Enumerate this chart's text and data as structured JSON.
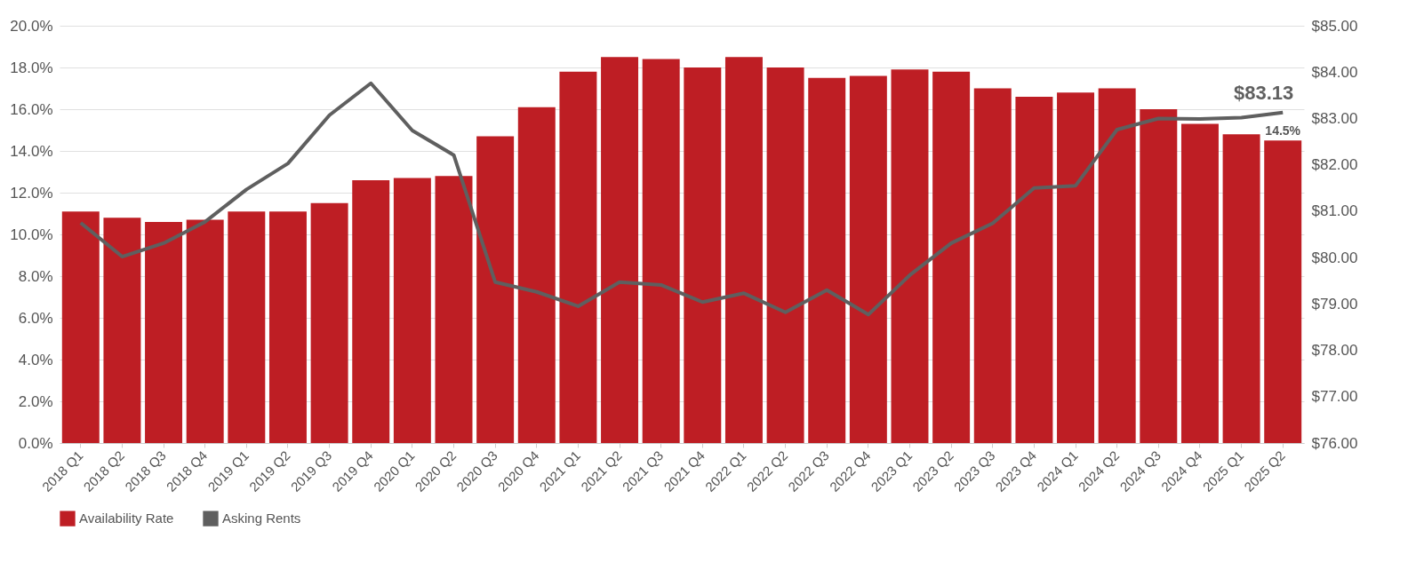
{
  "chart_data": {
    "type": "bar",
    "categories": [
      "2018 Q1",
      "2018 Q2",
      "2018 Q3",
      "2018 Q4",
      "2019 Q1",
      "2019 Q2",
      "2019 Q3",
      "2019 Q4",
      "2020 Q1",
      "2020 Q2",
      "2020 Q3",
      "2020 Q4",
      "2021 Q1",
      "2021 Q2",
      "2021 Q3",
      "2021 Q4",
      "2022 Q1",
      "2022 Q2",
      "2022 Q3",
      "2022 Q4",
      "2023 Q1",
      "2023 Q2",
      "2023 Q3",
      "2023 Q4",
      "2024 Q1",
      "2024 Q2",
      "2024 Q3",
      "2024 Q4",
      "2025 Q1",
      "2025 Q2"
    ],
    "series": [
      {
        "name": "Availability Rate",
        "color": "#be1e24",
        "values": [
          11.1,
          10.8,
          10.6,
          10.7,
          11.1,
          11.1,
          11.5,
          12.6,
          12.7,
          12.8,
          14.7,
          16.1,
          17.8,
          18.5,
          18.4,
          18.0,
          18.5,
          18.0,
          17.5,
          17.6,
          17.9,
          17.8,
          17.0,
          16.6,
          16.8,
          17.0,
          16.0,
          15.3,
          14.8,
          14.5
        ],
        "value_labels": [
          null,
          null,
          null,
          null,
          null,
          null,
          null,
          null,
          null,
          null,
          null,
          null,
          null,
          null,
          null,
          null,
          null,
          null,
          null,
          null,
          null,
          null,
          null,
          null,
          null,
          null,
          null,
          null,
          null,
          "14.5%"
        ]
      },
      {
        "name": "Asking Rents",
        "type": "line",
        "axis": "y2",
        "color": "#5f5f5f",
        "values": [
          80.75,
          80.02,
          80.31,
          80.77,
          81.47,
          82.03,
          83.07,
          83.76,
          82.74,
          82.21,
          79.47,
          79.26,
          78.95,
          79.47,
          79.41,
          79.04,
          79.23,
          78.82,
          79.3,
          78.77,
          79.62,
          80.31,
          80.74,
          81.5,
          81.55,
          82.76,
          83.0,
          82.99,
          83.02,
          83.13
        ],
        "value_labels": [
          null,
          null,
          null,
          null,
          null,
          null,
          null,
          null,
          null,
          null,
          null,
          null,
          null,
          null,
          null,
          null,
          null,
          null,
          null,
          null,
          null,
          null,
          null,
          null,
          null,
          null,
          null,
          null,
          null,
          "$83.13"
        ]
      }
    ],
    "ylim": [
      0,
      20
    ],
    "yticks": [
      {
        "value": 0,
        "label": "0.0%"
      },
      {
        "value": 2,
        "label": "2.0%"
      },
      {
        "value": 4,
        "label": "4.0%"
      },
      {
        "value": 6,
        "label": "6.0%"
      },
      {
        "value": 8,
        "label": "8.0%"
      },
      {
        "value": 10,
        "label": "10.0%"
      },
      {
        "value": 12,
        "label": "12.0%"
      },
      {
        "value": 14,
        "label": "14.0%"
      },
      {
        "value": 16,
        "label": "16.0%"
      },
      {
        "value": 18,
        "label": "18.0%"
      },
      {
        "value": 20,
        "label": "20.0%"
      }
    ],
    "y2lim": [
      76,
      85
    ],
    "y2ticks": [
      {
        "value": 76,
        "label": "$76.00"
      },
      {
        "value": 77,
        "label": "$77.00"
      },
      {
        "value": 78,
        "label": "$78.00"
      },
      {
        "value": 79,
        "label": "$79.00"
      },
      {
        "value": 80,
        "label": "$80.00"
      },
      {
        "value": 81,
        "label": "$81.00"
      },
      {
        "value": 82,
        "label": "$82.00"
      },
      {
        "value": 83,
        "label": "$83.00"
      },
      {
        "value": 84,
        "label": "$84.00"
      },
      {
        "value": 85,
        "label": "$85.00"
      }
    ],
    "grid": "y",
    "legend": "bottom"
  }
}
